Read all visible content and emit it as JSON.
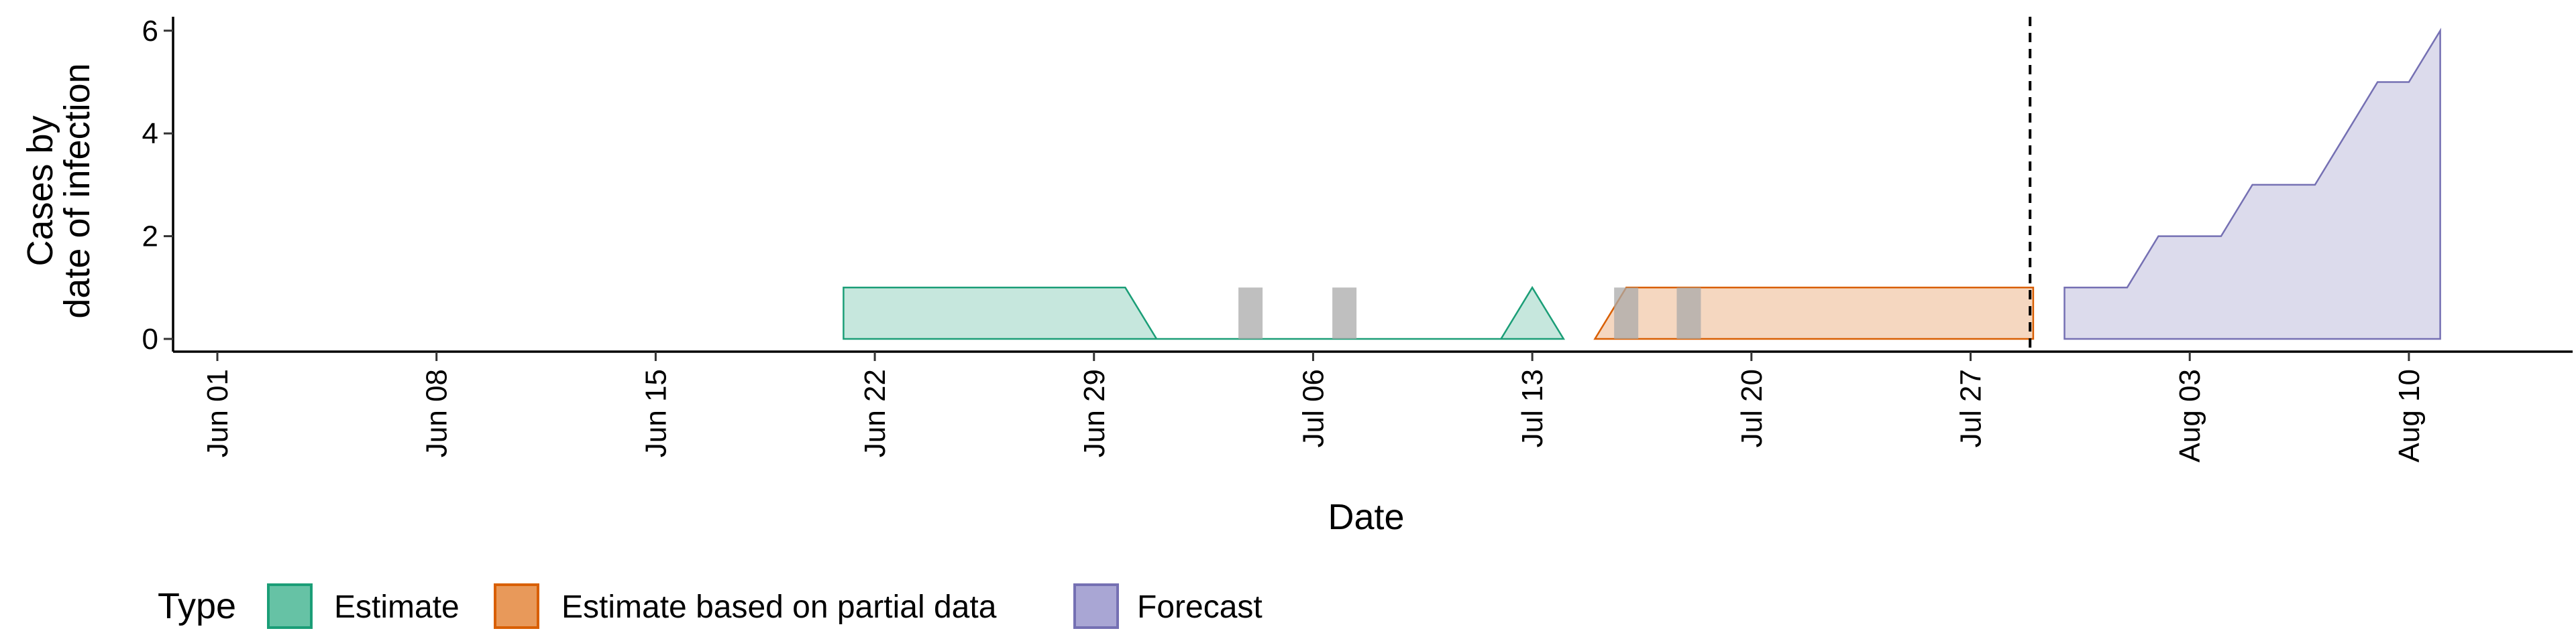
{
  "chart_data": {
    "type": "area",
    "xlabel": "Date",
    "ylabel_lines": [
      "Cases by",
      "date of infection"
    ],
    "x_axis": {
      "start_date": "2020-05-29",
      "end_date": "2020-08-15",
      "ticks": [
        {
          "label": "Jun 01",
          "day": 3
        },
        {
          "label": "Jun 08",
          "day": 10
        },
        {
          "label": "Jun 15",
          "day": 17
        },
        {
          "label": "Jun 22",
          "day": 24
        },
        {
          "label": "Jun 29",
          "day": 31
        },
        {
          "label": "Jul 06",
          "day": 38
        },
        {
          "label": "Jul 13",
          "day": 45
        },
        {
          "label": "Jul 20",
          "day": 52
        },
        {
          "label": "Jul 27",
          "day": 59
        },
        {
          "label": "Aug 03",
          "day": 66
        },
        {
          "label": "Aug 10",
          "day": 73
        }
      ]
    },
    "y_axis": {
      "ylim": [
        -0.25,
        6.3
      ],
      "ticks": [
        0,
        2,
        4,
        6
      ]
    },
    "forecast_cutoff_day": 60.9,
    "series": [
      {
        "name": "Estimate",
        "color": "#1b9e77",
        "fill": "#1b9e77",
        "points": [
          [
            23,
            0
          ],
          [
            23,
            1
          ],
          [
            32,
            1
          ],
          [
            33,
            0
          ],
          [
            44,
            0
          ],
          [
            45,
            1
          ],
          [
            46,
            0
          ]
        ]
      },
      {
        "name": "Estimate based on partial data",
        "color": "#d95f02",
        "fill": "#d95f02",
        "points": [
          [
            47,
            0
          ],
          [
            48,
            1
          ],
          [
            61,
            1
          ],
          [
            61,
            0
          ]
        ]
      },
      {
        "name": "Forecast",
        "color": "#7570b3",
        "fill": "#7570b3",
        "points": [
          [
            62,
            0
          ],
          [
            62,
            1
          ],
          [
            64,
            1
          ],
          [
            65,
            2
          ],
          [
            67,
            2
          ],
          [
            68,
            3
          ],
          [
            70,
            3
          ],
          [
            71,
            4
          ],
          [
            72,
            5
          ],
          [
            73,
            5
          ],
          [
            74,
            6
          ],
          [
            74,
            0
          ]
        ]
      }
    ],
    "reported_cases": [
      {
        "day": 36,
        "value": 1
      },
      {
        "day": 39,
        "value": 1
      },
      {
        "day": 48,
        "value": 1
      },
      {
        "day": 50,
        "value": 1
      }
    ],
    "legend": {
      "title": "Type",
      "position": "bottom-left",
      "entries": [
        {
          "label": "Estimate",
          "fill": "#66c2a5",
          "border": "#1b9e77"
        },
        {
          "label": "Estimate based on partial data",
          "fill": "#e8995a",
          "border": "#d95f02"
        },
        {
          "label": "Forecast",
          "fill": "#a9a6d4",
          "border": "#7570b3"
        }
      ]
    },
    "bar_color": "#a9a9a9",
    "grid": false
  }
}
